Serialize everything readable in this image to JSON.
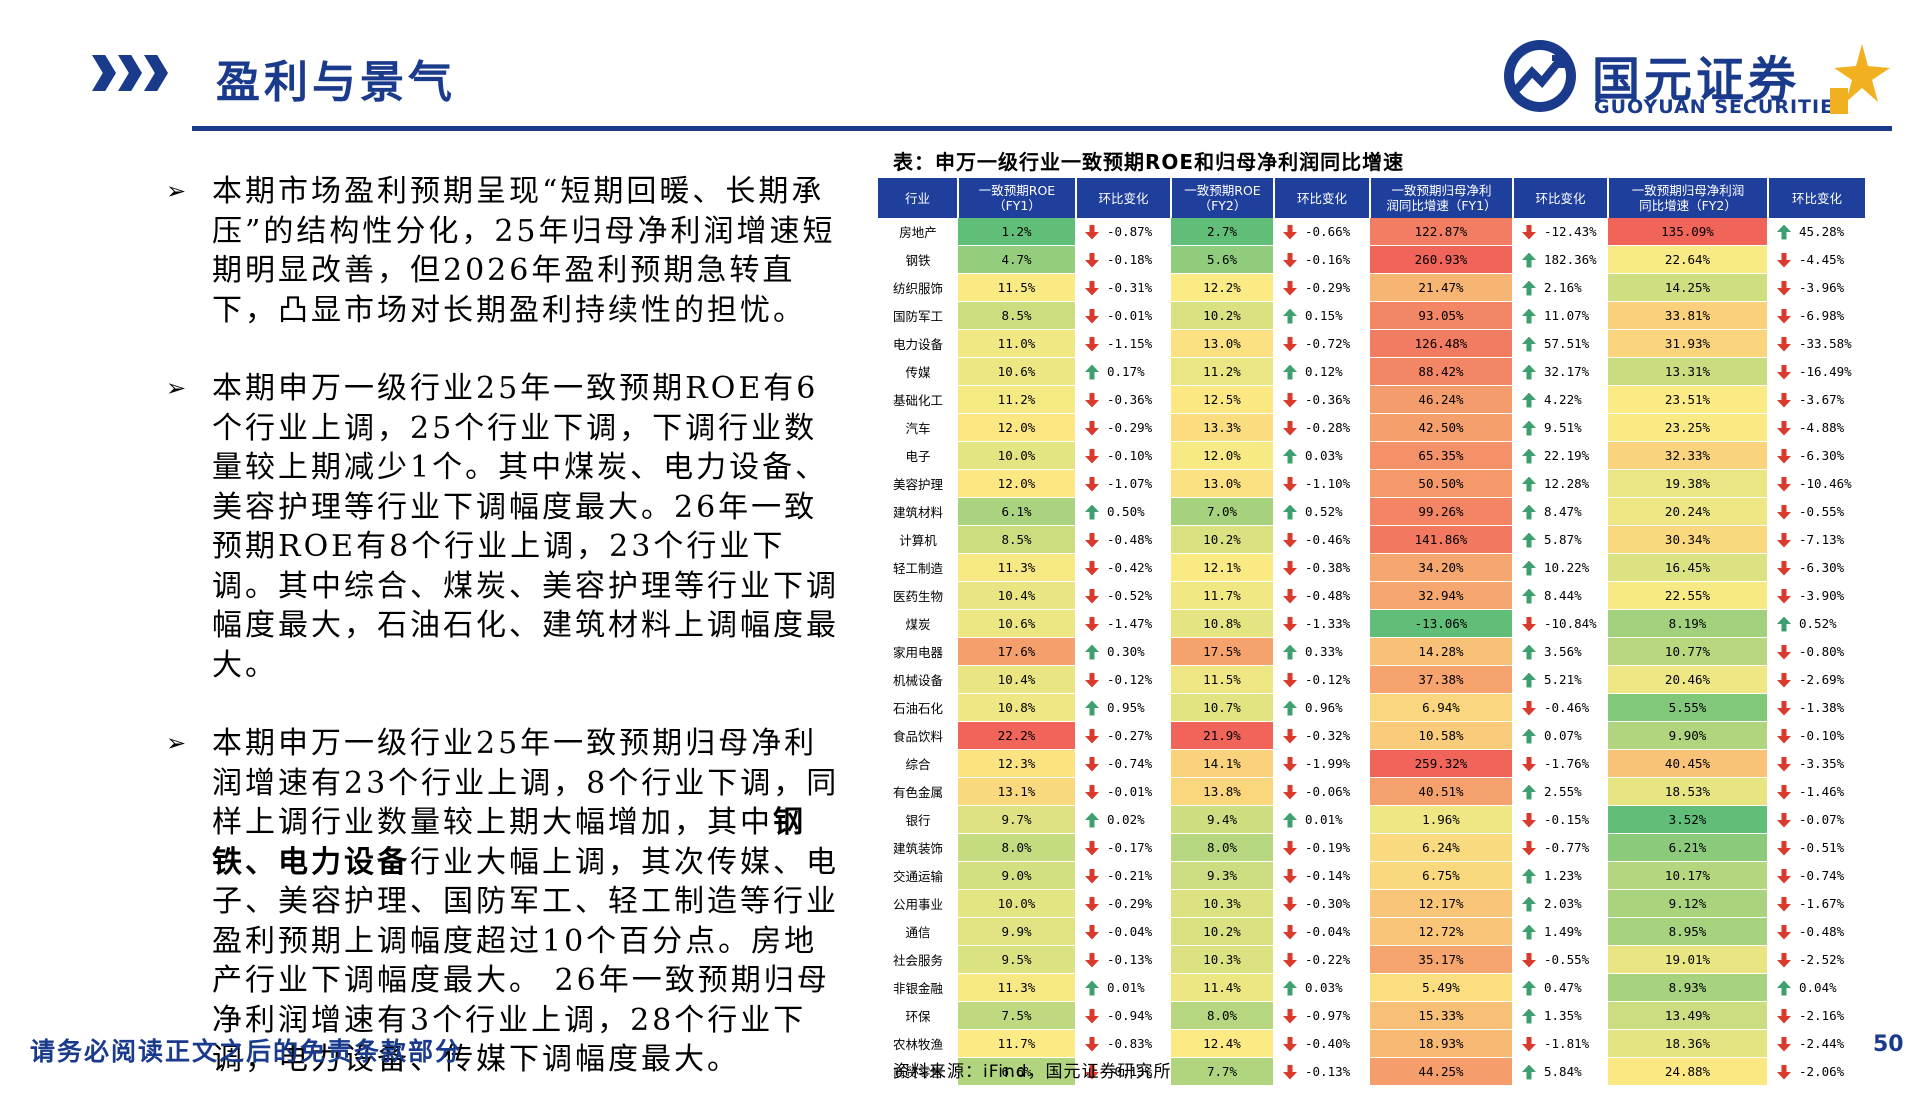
{
  "header": {
    "title": "盈利与景气",
    "logo_cn": "国元证券",
    "logo_en": "GUOYUAN SECURITIES",
    "accent_color": "#1a3a8c"
  },
  "bullets": [
    {
      "segments": [
        {
          "t": "本期市场盈利预期呈现“短期回暖、长期承压”的结构性分化，25年归母净利润增速短期明显改善，但2026年盈利预期急转直下，凸显市场对长期盈利持续性的担忧。",
          "b": false
        }
      ]
    },
    {
      "segments": [
        {
          "t": "本期申万一级行业25年一致预期ROE有6个行业上调，25个行业下调，下调行业数量较上期减少1个。其中煤炭、电力设备、美容护理等行业下调幅度最大。26年一致预期ROE有8个行业上调，23个行业下调。其中综合、煤炭、美容护理等行业下调幅度最大，石油石化、建筑材料上调幅度最大。",
          "b": false
        }
      ]
    },
    {
      "segments": [
        {
          "t": "本期申万一级行业25年一致预期归母净利润增速有23个行业上调，8个行业下调，同样上调行业数量较上期大幅增加，其中",
          "b": false
        },
        {
          "t": "钢铁、电力设备",
          "b": true
        },
        {
          "t": "行业大幅上调，其次传媒、电子、美容护理、国防军工、轻工制造等行业盈利预期上调幅度超过10个百分点。房地产行业下调幅度最大。 26年一致预期归母净利润增速有3个行业上调，28个行业下调，电力设备、传媒下调幅度最大。",
          "b": false
        }
      ]
    }
  ],
  "table": {
    "title": "表：申万一级行业一致预期ROE和归母净利润同比增速",
    "headers": [
      "行业",
      "一致预期ROE\n（FY1）",
      "环比变化",
      "一致预期ROE\n（FY2）",
      "环比变化",
      "一致预期归母净利\n润同比增速（FY1）",
      "环比变化",
      "一致预期归母净利润\n同比增速（FY2）",
      "环比变化"
    ],
    "rows": [
      [
        "房地产",
        "1.2%",
        "-0.87%",
        "2.7%",
        "-0.66%",
        "122.87%",
        "-12.43%",
        "135.09%",
        "45.28%"
      ],
      [
        "钢铁",
        "4.7%",
        "-0.18%",
        "5.6%",
        "-0.16%",
        "260.93%",
        "182.36%",
        "22.64%",
        "-4.45%"
      ],
      [
        "纺织服饰",
        "11.5%",
        "-0.31%",
        "12.2%",
        "-0.29%",
        "21.47%",
        "2.16%",
        "14.25%",
        "-3.96%"
      ],
      [
        "国防军工",
        "8.5%",
        "-0.01%",
        "10.2%",
        "0.15%",
        "93.05%",
        "11.07%",
        "33.81%",
        "-6.98%"
      ],
      [
        "电力设备",
        "11.0%",
        "-1.15%",
        "13.0%",
        "-0.72%",
        "126.48%",
        "57.51%",
        "31.93%",
        "-33.58%"
      ],
      [
        "传媒",
        "10.6%",
        "0.17%",
        "11.2%",
        "0.12%",
        "88.42%",
        "32.17%",
        "13.31%",
        "-16.49%"
      ],
      [
        "基础化工",
        "11.2%",
        "-0.36%",
        "12.5%",
        "-0.36%",
        "46.24%",
        "4.22%",
        "23.51%",
        "-3.67%"
      ],
      [
        "汽车",
        "12.0%",
        "-0.29%",
        "13.3%",
        "-0.28%",
        "42.50%",
        "9.51%",
        "23.25%",
        "-4.88%"
      ],
      [
        "电子",
        "10.0%",
        "-0.10%",
        "12.0%",
        "0.03%",
        "65.35%",
        "22.19%",
        "32.33%",
        "-6.30%"
      ],
      [
        "美容护理",
        "12.0%",
        "-1.07%",
        "13.0%",
        "-1.10%",
        "50.50%",
        "12.28%",
        "19.38%",
        "-10.46%"
      ],
      [
        "建筑材料",
        "6.1%",
        "0.50%",
        "7.0%",
        "0.52%",
        "99.26%",
        "8.47%",
        "20.24%",
        "-0.55%"
      ],
      [
        "计算机",
        "8.5%",
        "-0.48%",
        "10.2%",
        "-0.46%",
        "141.86%",
        "5.87%",
        "30.34%",
        "-7.13%"
      ],
      [
        "轻工制造",
        "11.3%",
        "-0.42%",
        "12.1%",
        "-0.38%",
        "34.20%",
        "10.22%",
        "16.45%",
        "-6.30%"
      ],
      [
        "医药生物",
        "10.4%",
        "-0.52%",
        "11.7%",
        "-0.48%",
        "32.94%",
        "8.44%",
        "22.55%",
        "-3.90%"
      ],
      [
        "煤炭",
        "10.6%",
        "-1.47%",
        "10.8%",
        "-1.33%",
        "-13.06%",
        "-10.84%",
        "8.19%",
        "0.52%"
      ],
      [
        "家用电器",
        "17.6%",
        "0.30%",
        "17.5%",
        "0.33%",
        "14.28%",
        "3.56%",
        "10.77%",
        "-0.80%"
      ],
      [
        "机械设备",
        "10.4%",
        "-0.12%",
        "11.5%",
        "-0.12%",
        "37.38%",
        "5.21%",
        "20.46%",
        "-2.69%"
      ],
      [
        "石油石化",
        "10.8%",
        "0.95%",
        "10.7%",
        "0.96%",
        "6.94%",
        "-0.46%",
        "5.55%",
        "-1.38%"
      ],
      [
        "食品饮料",
        "22.2%",
        "-0.27%",
        "21.9%",
        "-0.32%",
        "10.58%",
        "0.07%",
        "9.90%",
        "-0.10%"
      ],
      [
        "综合",
        "12.3%",
        "-0.74%",
        "14.1%",
        "-1.99%",
        "259.32%",
        "-1.76%",
        "40.45%",
        "-3.35%"
      ],
      [
        "有色金属",
        "13.1%",
        "-0.01%",
        "13.8%",
        "-0.06%",
        "40.51%",
        "2.55%",
        "18.53%",
        "-1.46%"
      ],
      [
        "银行",
        "9.7%",
        "0.02%",
        "9.4%",
        "0.01%",
        "1.96%",
        "-0.15%",
        "3.52%",
        "-0.07%"
      ],
      [
        "建筑装饰",
        "8.0%",
        "-0.17%",
        "8.0%",
        "-0.19%",
        "6.24%",
        "-0.77%",
        "6.21%",
        "-0.51%"
      ],
      [
        "交通运输",
        "9.0%",
        "-0.21%",
        "9.3%",
        "-0.14%",
        "6.75%",
        "1.23%",
        "10.17%",
        "-0.74%"
      ],
      [
        "公用事业",
        "10.0%",
        "-0.29%",
        "10.3%",
        "-0.30%",
        "12.17%",
        "2.03%",
        "9.12%",
        "-1.67%"
      ],
      [
        "通信",
        "9.9%",
        "-0.04%",
        "10.2%",
        "-0.04%",
        "12.72%",
        "1.49%",
        "8.95%",
        "-0.48%"
      ],
      [
        "社会服务",
        "9.5%",
        "-0.13%",
        "10.3%",
        "-0.22%",
        "35.17%",
        "-0.55%",
        "19.01%",
        "-2.52%"
      ],
      [
        "非银金融",
        "11.3%",
        "0.01%",
        "11.4%",
        "0.03%",
        "5.49%",
        "0.47%",
        "8.93%",
        "0.04%"
      ],
      [
        "环保",
        "7.5%",
        "-0.94%",
        "8.0%",
        "-0.97%",
        "15.33%",
        "1.35%",
        "13.49%",
        "-2.16%"
      ],
      [
        "农林牧渔",
        "11.7%",
        "-0.83%",
        "12.4%",
        "-0.40%",
        "18.93%",
        "-1.81%",
        "18.36%",
        "-2.44%"
      ],
      [
        "商贸零售",
        "6.6%",
        "-0.13%",
        "7.7%",
        "-0.13%",
        "44.25%",
        "5.84%",
        "24.88%",
        "-2.06%"
      ]
    ],
    "arrow_up_color": "#3fa06f",
    "arrow_down_color": "#d83a2e",
    "header_color": "#1f3f9c",
    "source": "资料来源：iFind，国元证券研究所"
  },
  "footer": {
    "disclaimer": "请务必阅读正文之后的免责条款部分",
    "page": "50"
  }
}
